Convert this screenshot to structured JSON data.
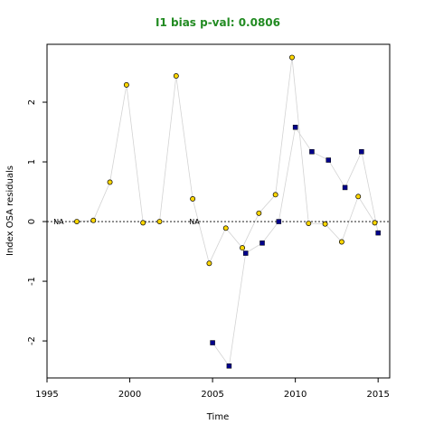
{
  "chart_data": {
    "type": "scatter",
    "title": "I1 bias p-val: 0.0806",
    "xlabel": "Time",
    "ylabel": "Index OSA residuals",
    "xlim": [
      1995,
      2015.7
    ],
    "ylim": [
      -2.62,
      2.97
    ],
    "xticks": [
      1995,
      2000,
      2005,
      2010,
      2015
    ],
    "yticks": [
      -2,
      -1,
      0,
      1,
      2
    ],
    "reference_line_y": 0,
    "colors": {
      "title": "#228B22",
      "series_a_fill": "#FFD700",
      "series_b_fill": "#00008B",
      "connector": "#d3d3d3"
    },
    "series": [
      {
        "marker": "circle",
        "points": [
          {
            "x": 1996.8,
            "y": 0.0
          },
          {
            "x": 1997.8,
            "y": 0.02
          },
          {
            "x": 1998.8,
            "y": 0.66
          },
          {
            "x": 1999.8,
            "y": 2.29
          },
          {
            "x": 2000.8,
            "y": -0.02
          },
          {
            "x": 2001.8,
            "y": 0.0
          },
          {
            "x": 2002.8,
            "y": 2.44
          },
          {
            "x": 2003.8,
            "y": 0.38
          },
          {
            "x": 2004.8,
            "y": -0.7
          },
          {
            "x": 2005.8,
            "y": -0.11
          },
          {
            "x": 2006.8,
            "y": -0.44
          },
          {
            "x": 2007.8,
            "y": 0.14
          },
          {
            "x": 2008.8,
            "y": 0.45
          },
          {
            "x": 2009.8,
            "y": 2.75
          },
          {
            "x": 2010.8,
            "y": -0.03
          },
          {
            "x": 2011.8,
            "y": -0.04
          },
          {
            "x": 2012.8,
            "y": -0.34
          },
          {
            "x": 2013.8,
            "y": 0.42
          },
          {
            "x": 2014.8,
            "y": -0.02
          }
        ]
      },
      {
        "marker": "square",
        "points": [
          {
            "x": 2005.0,
            "y": -2.03
          },
          {
            "x": 2006.0,
            "y": -2.42
          },
          {
            "x": 2007.0,
            "y": -0.53
          },
          {
            "x": 2008.0,
            "y": -0.36
          },
          {
            "x": 2009.0,
            "y": 0.0
          },
          {
            "x": 2010.0,
            "y": 1.58
          },
          {
            "x": 2011.0,
            "y": 1.17
          },
          {
            "x": 2012.0,
            "y": 1.03
          },
          {
            "x": 2013.0,
            "y": 0.57
          },
          {
            "x": 2014.0,
            "y": 1.17
          },
          {
            "x": 2015.0,
            "y": -0.19
          }
        ]
      }
    ],
    "annotations": [
      {
        "text": "NA",
        "x": 1995.7,
        "y": 0
      },
      {
        "text": "NA",
        "x": 2003.9,
        "y": 0
      }
    ]
  }
}
